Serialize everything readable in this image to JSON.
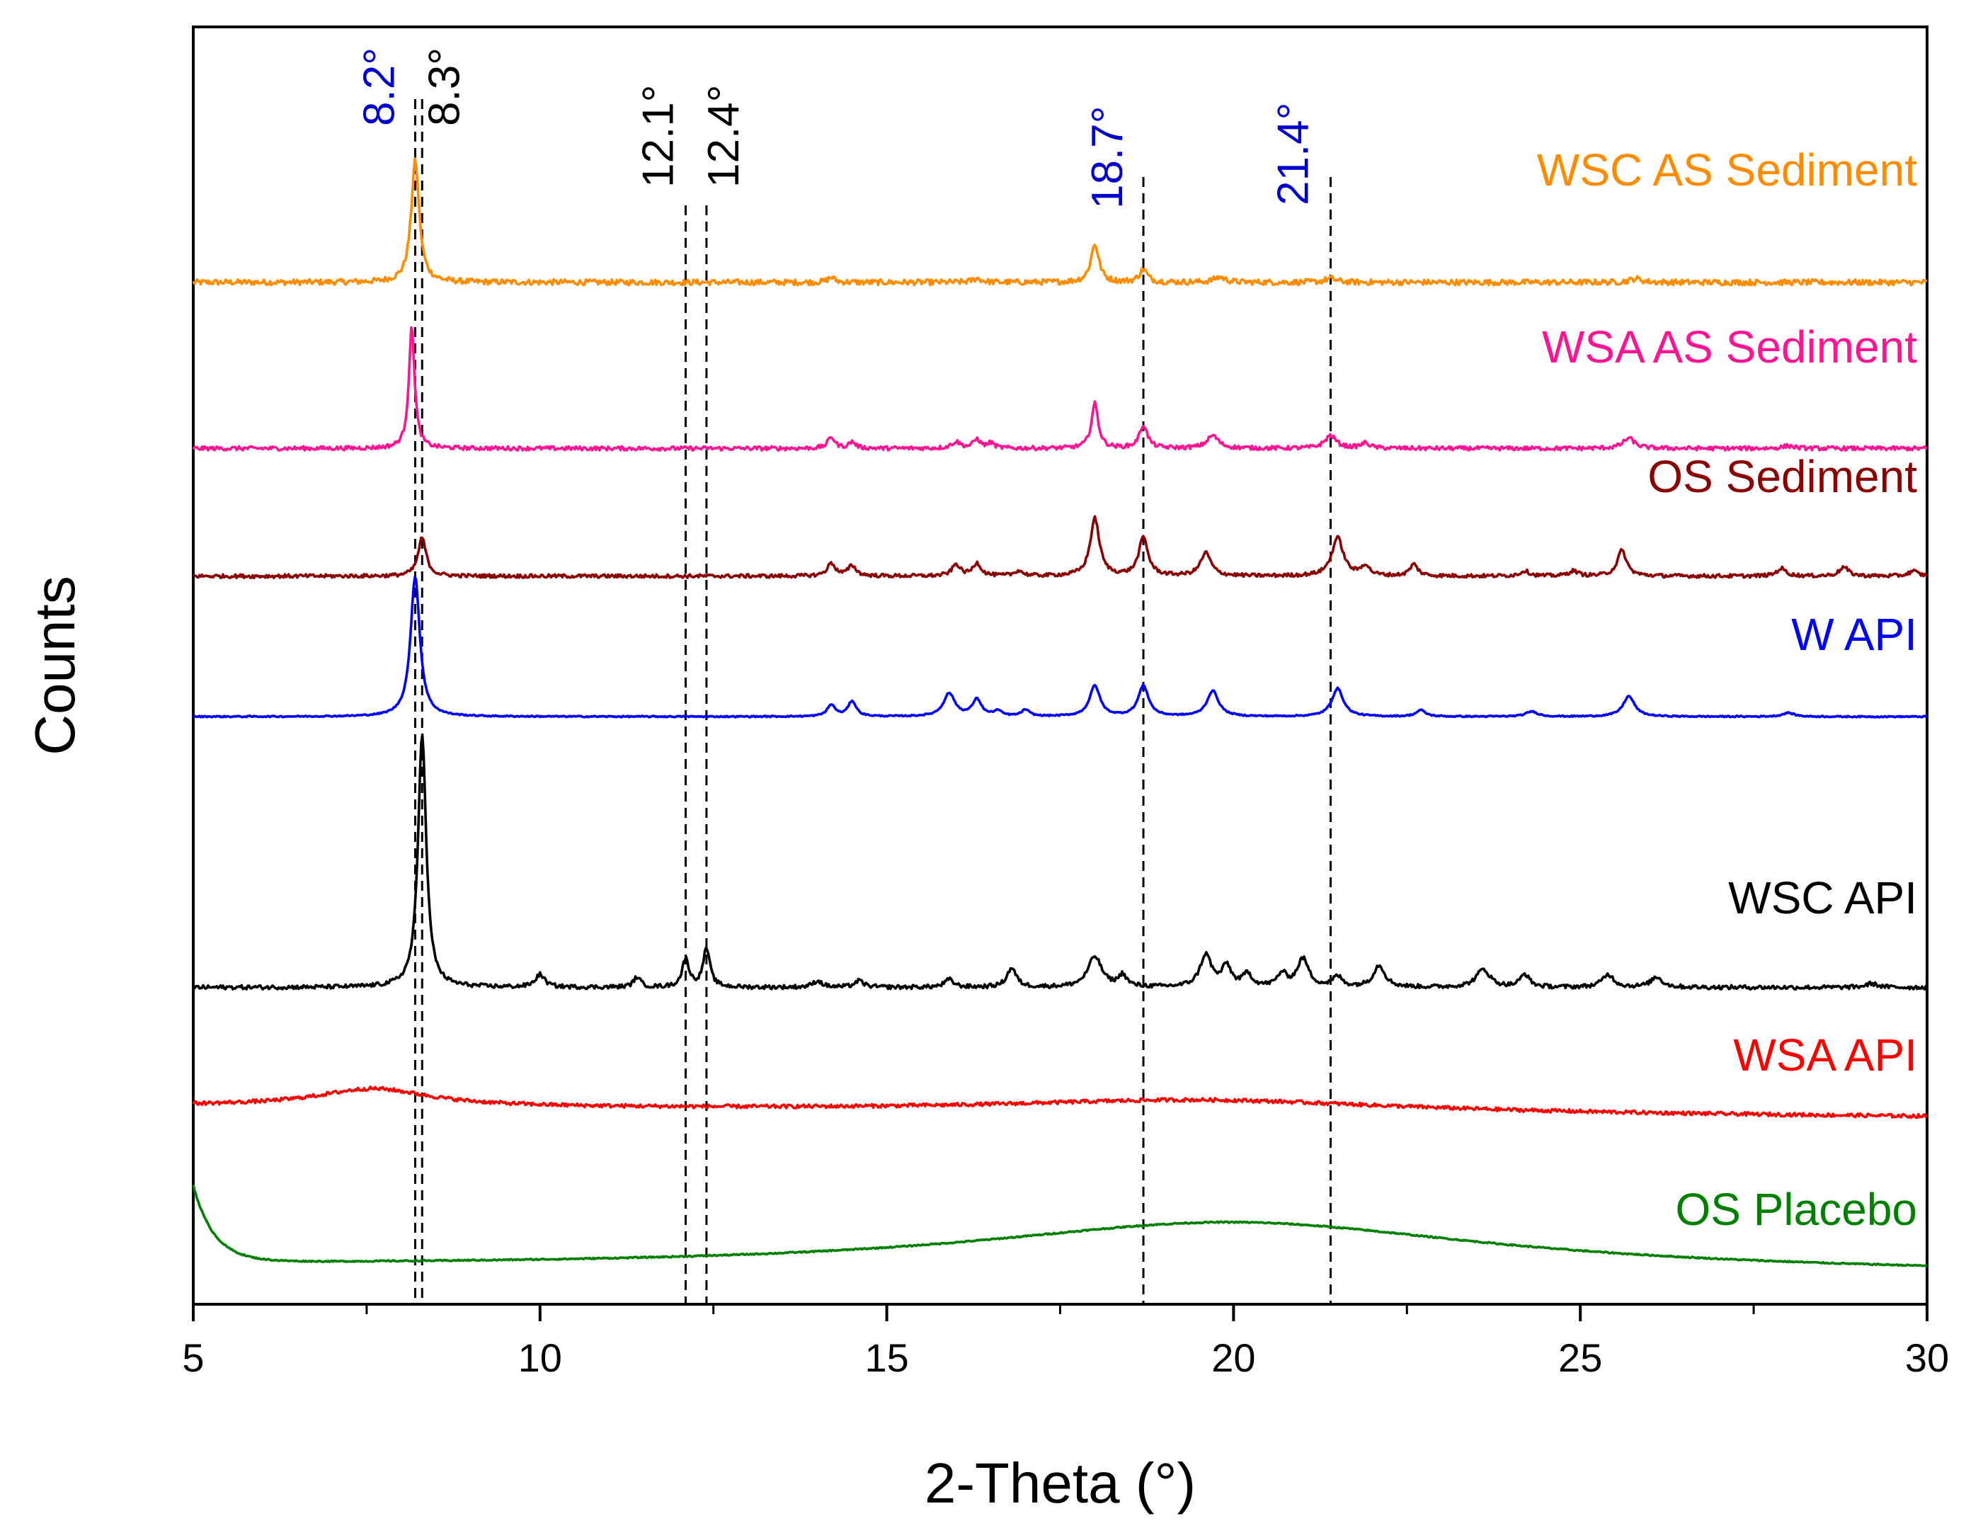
{
  "chart_data": {
    "type": "line",
    "title": "",
    "xlabel": "2-Theta",
    "xlabel_unit": "(°)",
    "ylabel": "Counts",
    "xlim": [
      5,
      30
    ],
    "ylim": [
      0,
      1000
    ],
    "x_ticks": [
      5,
      10,
      15,
      20,
      25,
      30
    ],
    "x_tick_labels": [
      "5",
      "10",
      "15",
      "20",
      "25",
      "30"
    ],
    "grid": false,
    "y_tick_labels_shown": false,
    "series": [
      {
        "name": "WSC AS Sediment",
        "color": "#FF8C00",
        "baseline": 800,
        "noise": 2.2,
        "slope": 0,
        "peaks": [
          [
            8.2,
            95,
            0.07
          ],
          [
            14.2,
            4,
            0.06
          ],
          [
            16.3,
            3,
            0.08
          ],
          [
            18.0,
            30,
            0.07
          ],
          [
            18.7,
            10,
            0.07
          ],
          [
            19.8,
            4,
            0.1
          ],
          [
            21.4,
            3,
            0.1
          ],
          [
            25.8,
            3,
            0.1
          ]
        ]
      },
      {
        "name": "WSA AS Sediment",
        "color": "#FF1493",
        "baseline": 670,
        "noise": 1.6,
        "slope": 0,
        "peaks": [
          [
            8.15,
            95,
            0.05
          ],
          [
            14.2,
            9,
            0.06
          ],
          [
            14.5,
            5,
            0.06
          ],
          [
            16.0,
            5,
            0.08
          ],
          [
            16.3,
            7,
            0.06
          ],
          [
            16.5,
            4,
            0.06
          ],
          [
            18.0,
            35,
            0.06
          ],
          [
            18.7,
            18,
            0.07
          ],
          [
            19.7,
            10,
            0.1
          ],
          [
            21.4,
            10,
            0.1
          ],
          [
            21.9,
            4,
            0.08
          ],
          [
            25.7,
            8,
            0.1
          ],
          [
            28.0,
            2,
            0.1
          ]
        ]
      },
      {
        "name": "OS Sediment",
        "color": "#8B0000",
        "baseline": 570,
        "noise": 1.4,
        "slope": 0,
        "peaks": [
          [
            8.3,
            30,
            0.07
          ],
          [
            14.2,
            10,
            0.07
          ],
          [
            14.5,
            8,
            0.07
          ],
          [
            16.0,
            9,
            0.07
          ],
          [
            16.3,
            10,
            0.07
          ],
          [
            16.9,
            4,
            0.07
          ],
          [
            18.0,
            45,
            0.08
          ],
          [
            18.7,
            30,
            0.08
          ],
          [
            19.6,
            18,
            0.09
          ],
          [
            21.5,
            30,
            0.1
          ],
          [
            21.9,
            8,
            0.07
          ],
          [
            22.6,
            9,
            0.07
          ],
          [
            24.2,
            4,
            0.08
          ],
          [
            24.9,
            4,
            0.08
          ],
          [
            25.6,
            20,
            0.08
          ],
          [
            27.9,
            6,
            0.08
          ],
          [
            28.8,
            7,
            0.08
          ],
          [
            29.8,
            4,
            0.08
          ]
        ]
      },
      {
        "name": "W API",
        "color": "#0000FF",
        "baseline": 460,
        "noise": 0.5,
        "slope": 0,
        "peaks": [
          [
            8.2,
            110,
            0.08
          ],
          [
            14.2,
            9,
            0.07
          ],
          [
            14.5,
            12,
            0.07
          ],
          [
            15.9,
            18,
            0.1
          ],
          [
            16.3,
            13,
            0.08
          ],
          [
            16.6,
            4,
            0.07
          ],
          [
            17.0,
            5,
            0.07
          ],
          [
            18.0,
            24,
            0.09
          ],
          [
            18.7,
            24,
            0.09
          ],
          [
            19.7,
            20,
            0.1
          ],
          [
            21.5,
            22,
            0.1
          ],
          [
            22.7,
            5,
            0.08
          ],
          [
            24.3,
            4,
            0.1
          ],
          [
            25.7,
            16,
            0.1
          ],
          [
            28.0,
            3,
            0.1
          ]
        ]
      },
      {
        "name": "WSC API",
        "color": "#000000",
        "baseline": 248,
        "noise": 1.6,
        "slope": 0,
        "peaks": [
          [
            8.3,
            200,
            0.07
          ],
          [
            10.0,
            10,
            0.08
          ],
          [
            11.4,
            8,
            0.06
          ],
          [
            12.1,
            22,
            0.06
          ],
          [
            12.4,
            30,
            0.06
          ],
          [
            14.0,
            5,
            0.08
          ],
          [
            14.6,
            5,
            0.08
          ],
          [
            15.9,
            6,
            0.08
          ],
          [
            16.8,
            15,
            0.08
          ],
          [
            18.0,
            24,
            0.12
          ],
          [
            18.4,
            9,
            0.07
          ],
          [
            19.6,
            25,
            0.1
          ],
          [
            19.9,
            16,
            0.08
          ],
          [
            20.2,
            10,
            0.08
          ],
          [
            20.7,
            10,
            0.08
          ],
          [
            21.0,
            22,
            0.1
          ],
          [
            21.5,
            8,
            0.08
          ],
          [
            22.1,
            17,
            0.1
          ],
          [
            23.6,
            14,
            0.12
          ],
          [
            24.2,
            10,
            0.08
          ],
          [
            25.4,
            10,
            0.1
          ],
          [
            26.1,
            8,
            0.1
          ],
          [
            29.2,
            3,
            0.1
          ]
        ]
      },
      {
        "name": "WSA API",
        "color": "#FF0000",
        "baseline": 155,
        "noise": 1.4,
        "slope": -0.35,
        "peaks": [
          [
            7.6,
            14,
            1.0
          ],
          [
            19.6,
            10,
            3.5
          ]
        ]
      },
      {
        "name": "OS Placebo",
        "color": "#008000",
        "baseline": 30,
        "noise": 0.5,
        "slope": -0.25,
        "decay": [
          60,
          0.3
        ],
        "peaks": [
          [
            20.0,
            38,
            4.5
          ]
        ]
      }
    ],
    "reference_lines": [
      {
        "x": 8.2,
        "label": "8.2°",
        "color": "#0000CC"
      },
      {
        "x": 8.3,
        "label": "8.3°",
        "color": "#000000"
      },
      {
        "x": 12.1,
        "label": "12.1°",
        "color": "#000000"
      },
      {
        "x": 12.4,
        "label": "12.4°",
        "color": "#000000"
      },
      {
        "x": 18.7,
        "label": "18.7°",
        "color": "#0000CC"
      },
      {
        "x": 21.4,
        "label": "21.4°",
        "color": "#0000CC"
      }
    ]
  }
}
